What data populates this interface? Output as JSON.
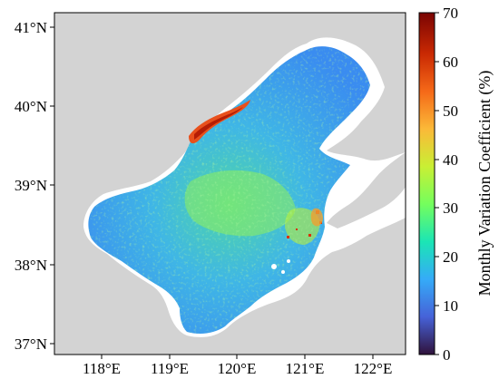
{
  "map": {
    "lat_ticks": [
      "41°N",
      "40°N",
      "39°N",
      "38°N",
      "37°N"
    ],
    "lon_ticks": [
      "118°E",
      "119°E",
      "120°E",
      "121°E",
      "122°E"
    ],
    "colors": {
      "land": "#d3d3d3",
      "sea_outside_data": "#ffffff",
      "frame": "#000000"
    }
  },
  "colorbar": {
    "title": "Monthly Variation Coefficient (%)",
    "tick_labels": [
      "70",
      "60",
      "50",
      "40",
      "30",
      "20",
      "10",
      "0"
    ],
    "range": [
      0,
      70
    ],
    "colormap": "turbo",
    "stops": [
      "#30123b",
      "#4662d8",
      "#35abf8",
      "#1be5b5",
      "#74fe5d",
      "#c9ef34",
      "#fbb938",
      "#f56918",
      "#c92903",
      "#7a0403"
    ]
  }
}
